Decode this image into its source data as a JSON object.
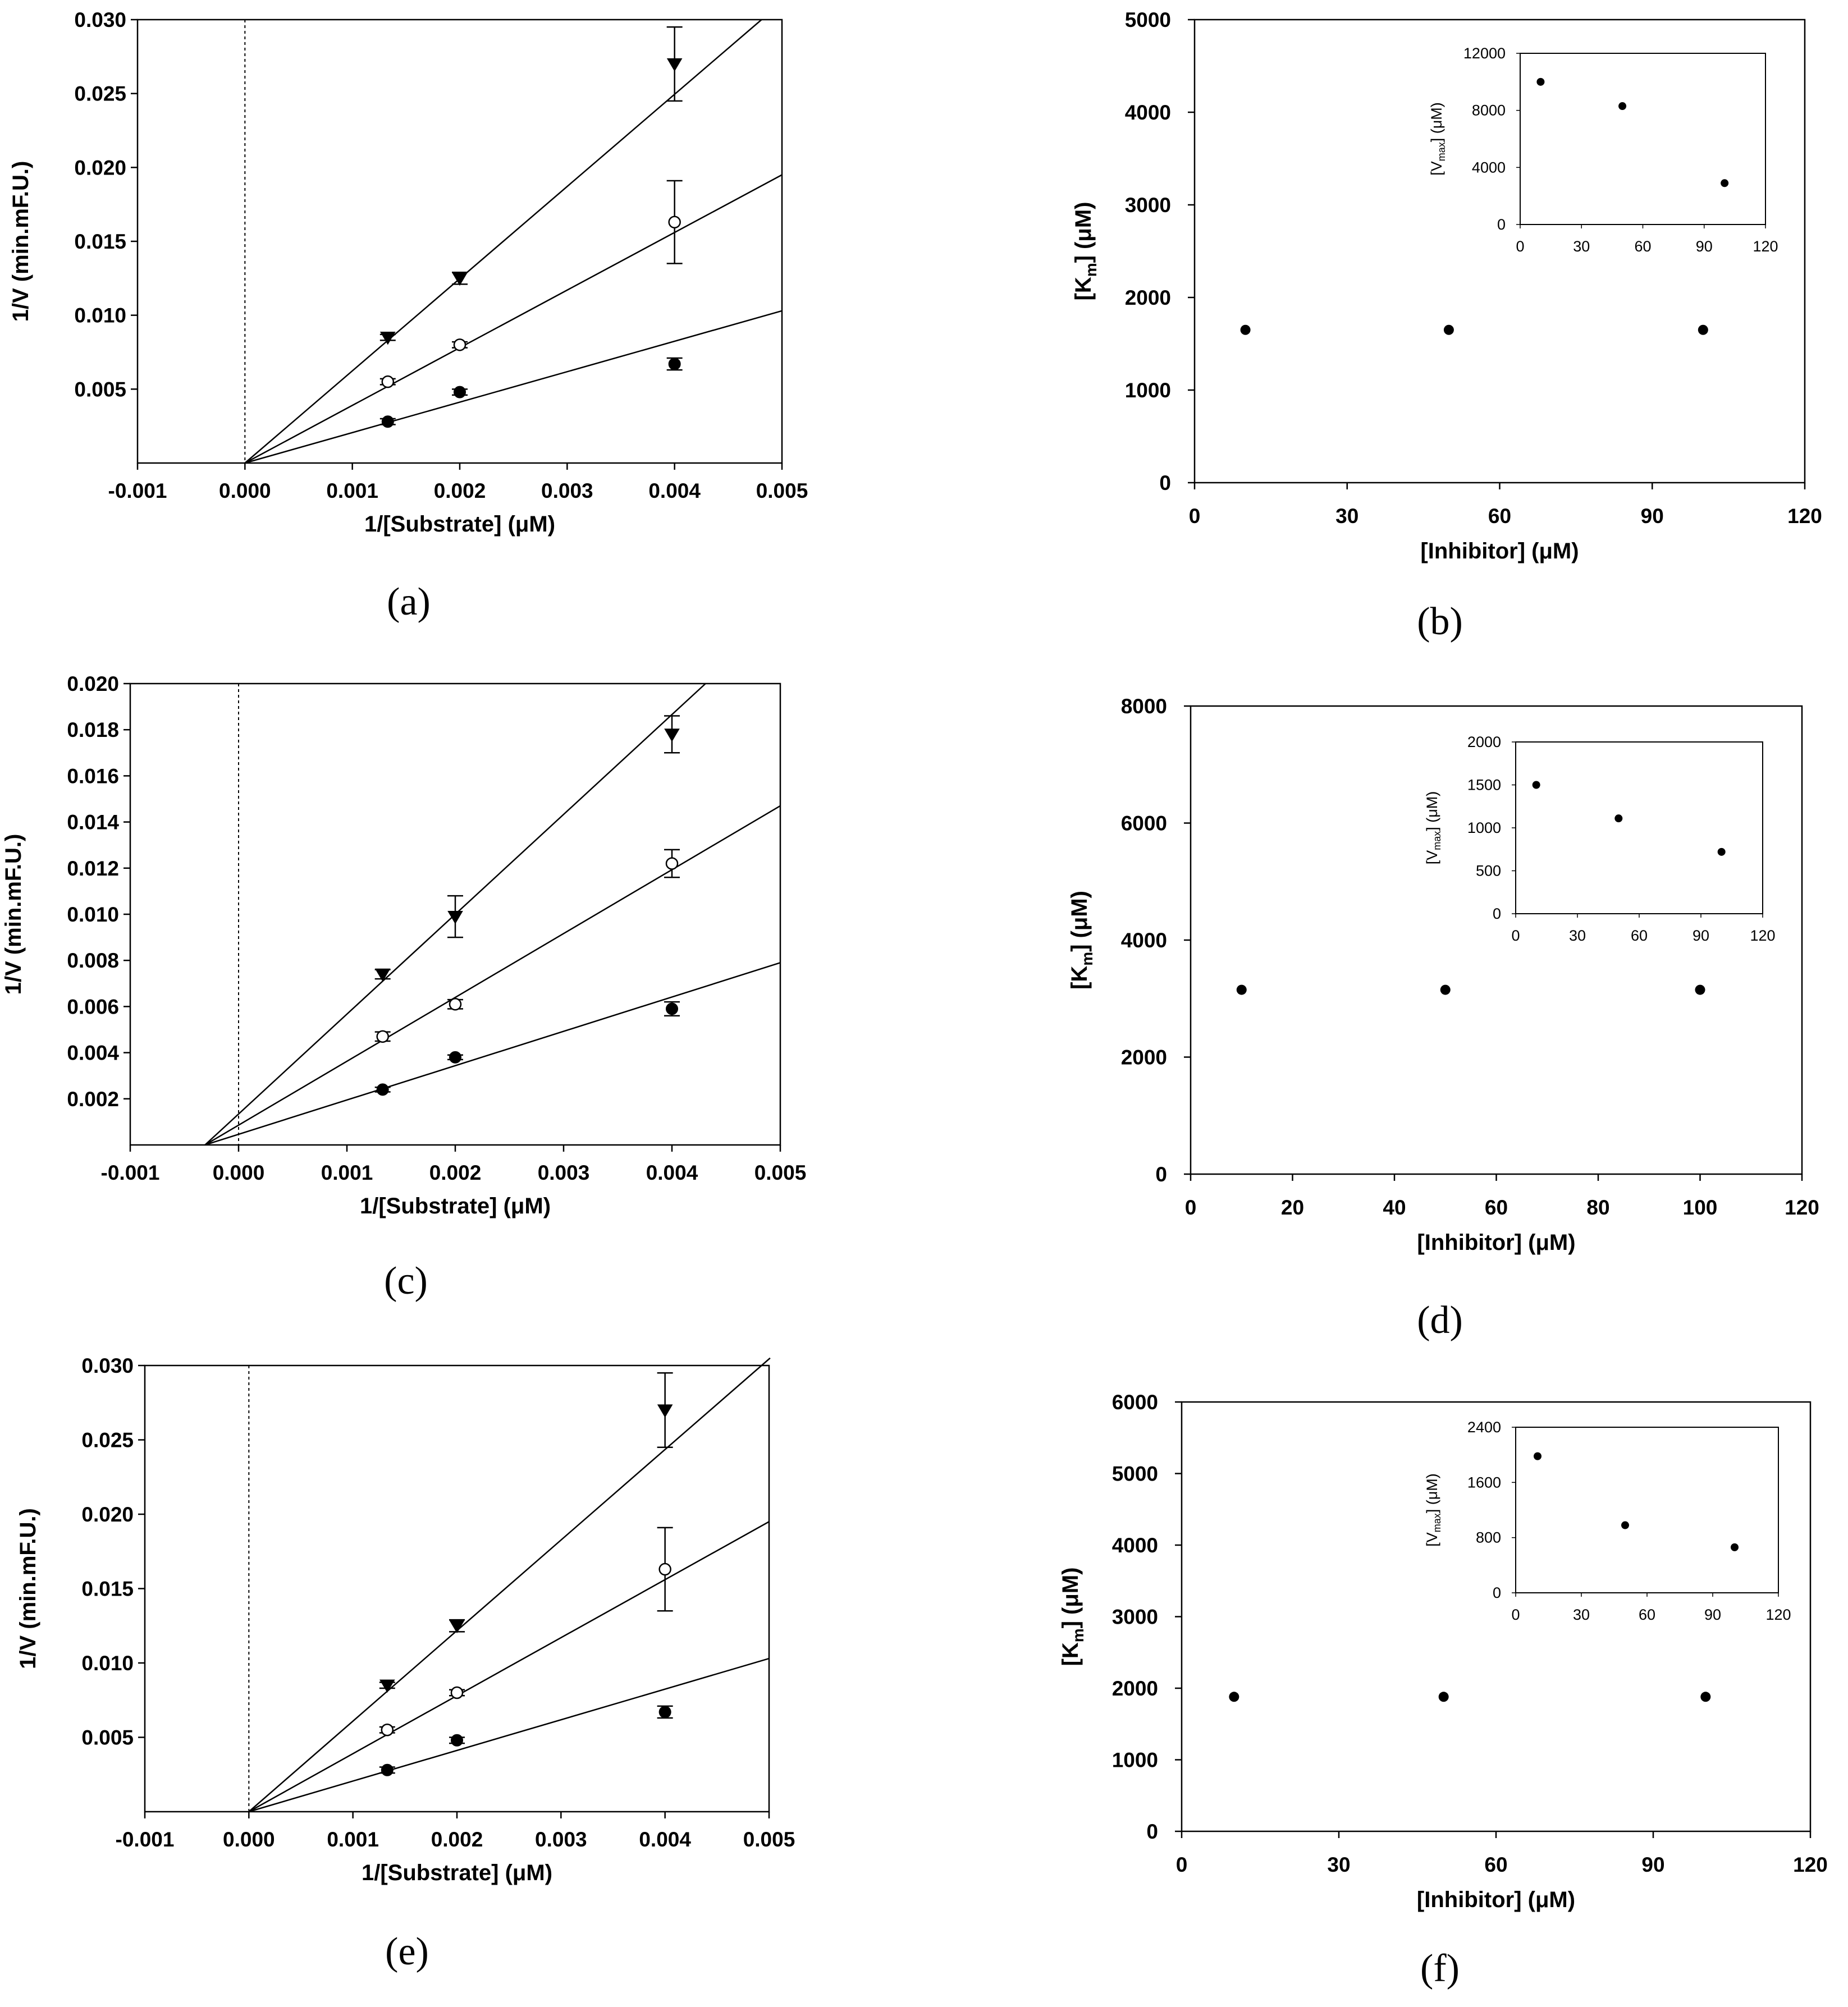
{
  "chart_data": [
    {
      "id": "a",
      "panel_label": "(a)",
      "type": "scatter",
      "subtype": "lineweaver-burk",
      "xlabel": "1/[Substrate] (μM)",
      "ylabel": "1/V (min.mF.U.)",
      "xlim": [
        -0.001,
        0.005
      ],
      "ylim": [
        0,
        0.03
      ],
      "xticks": [
        "-0.001",
        "0.000",
        "0.001",
        "0.002",
        "0.003",
        "0.004",
        "0.005"
      ],
      "yticks": [
        "0.005",
        "0.010",
        "0.015",
        "0.020",
        "0.025",
        "0.030"
      ],
      "dashed_vline_x": 0.0,
      "series": [
        {
          "name": "filled circle",
          "marker": "circle-filled",
          "x": [
            0.00133,
            0.002,
            0.004
          ],
          "y": [
            0.0028,
            0.0048,
            0.0067
          ],
          "err": [
            0.0002,
            0.0002,
            0.0004
          ],
          "line": {
            "x0": 0,
            "y0": 0,
            "x1": 0.005,
            "y1": 0.0103
          }
        },
        {
          "name": "open circle",
          "marker": "circle-open",
          "x": [
            0.00133,
            0.002,
            0.004
          ],
          "y": [
            0.0055,
            0.008,
            0.0163
          ],
          "err": [
            0.0002,
            0.0002,
            0.0028
          ],
          "line": {
            "x0": 0,
            "y0": 0,
            "x1": 0.005,
            "y1": 0.0195
          }
        },
        {
          "name": "filled triangle",
          "marker": "triangle-down",
          "x": [
            0.00133,
            0.002,
            0.004
          ],
          "y": [
            0.0085,
            0.0125,
            0.027
          ],
          "err": [
            0.0002,
            0.0004,
            0.0025
          ],
          "line": {
            "x0": 0,
            "y0": 0,
            "x1": 0.00481,
            "y1": 0.03
          }
        }
      ]
    },
    {
      "id": "b",
      "panel_label": "(b)",
      "type": "scatter",
      "xlabel": "[Inhibitor] (μM)",
      "ylabel": "[K_m] (μM)",
      "ylabel_main": "[K",
      "ylabel_sub": "m",
      "ylabel_end": "] (μM)",
      "xlim": [
        0,
        120
      ],
      "ylim": [
        0,
        5000
      ],
      "xticks": [
        "0",
        "30",
        "60",
        "90",
        "120"
      ],
      "yticks": [
        "0",
        "1000",
        "2000",
        "3000",
        "4000",
        "5000"
      ],
      "x": [
        10,
        50,
        100
      ],
      "y": [
        1650,
        1650,
        1650
      ],
      "inset": {
        "ylabel": "[V_max] (μM)",
        "ylabel_main": "[V",
        "ylabel_sub": "max",
        "ylabel_end": "] (μM)",
        "xlim": [
          0,
          120
        ],
        "ylim": [
          0,
          12000
        ],
        "xticks": [
          "0",
          "30",
          "60",
          "90",
          "120"
        ],
        "yticks": [
          "0",
          "4000",
          "8000",
          "12000"
        ],
        "x": [
          10,
          50,
          100
        ],
        "y": [
          10000,
          8300,
          2900
        ]
      }
    },
    {
      "id": "c",
      "panel_label": "(c)",
      "type": "scatter",
      "subtype": "lineweaver-burk",
      "xlabel": "1/[Substrate] (μM)",
      "ylabel": "1/V (min.mF.U.)",
      "xlim": [
        -0.001,
        0.005
      ],
      "ylim": [
        0,
        0.02
      ],
      "xticks": [
        "-0.001",
        "0.000",
        "0.001",
        "0.002",
        "0.003",
        "0.004",
        "0.005"
      ],
      "yticks": [
        "0.002",
        "0.004",
        "0.006",
        "0.008",
        "0.010",
        "0.012",
        "0.014",
        "0.016",
        "0.018",
        "0.020"
      ],
      "dashed_vline_x": 0.0,
      "series": [
        {
          "name": "filled circle",
          "marker": "circle-filled",
          "x": [
            0.00133,
            0.002,
            0.004
          ],
          "y": [
            0.0024,
            0.0038,
            0.0059
          ],
          "err": [
            0.0001,
            0.0001,
            0.0003
          ],
          "line": {
            "x0": -0.00031,
            "y0": 0,
            "x1": 0.005,
            "y1": 0.0079
          }
        },
        {
          "name": "open circle",
          "marker": "circle-open",
          "x": [
            0.00133,
            0.002,
            0.004
          ],
          "y": [
            0.0047,
            0.0061,
            0.0122
          ],
          "err": [
            0.0002,
            0.0002,
            0.0006
          ],
          "line": {
            "x0": -0.00031,
            "y0": 0,
            "x1": 0.005,
            "y1": 0.0147
          }
        },
        {
          "name": "filled triangle",
          "marker": "triangle-down",
          "x": [
            0.00133,
            0.002,
            0.004
          ],
          "y": [
            0.0074,
            0.0099,
            0.0178
          ],
          "err": [
            0.0002,
            0.0009,
            0.0008
          ],
          "line": {
            "x0": -0.00031,
            "y0": 0,
            "x1": 0.00431,
            "y1": 0.02
          }
        }
      ]
    },
    {
      "id": "d",
      "panel_label": "(d)",
      "type": "scatter",
      "xlabel": "[Inhibitor] (μM)",
      "ylabel": "[K_m] (μM)",
      "ylabel_main": "[K",
      "ylabel_sub": "m",
      "ylabel_end": "] (μM)",
      "xlim": [
        0,
        120
      ],
      "ylim": [
        0,
        8000
      ],
      "xticks": [
        "0",
        "20",
        "40",
        "60",
        "80",
        "100",
        "120"
      ],
      "yticks": [
        "0",
        "2000",
        "4000",
        "6000",
        "8000"
      ],
      "x": [
        10,
        50,
        100
      ],
      "y": [
        3150,
        3150,
        3150
      ],
      "inset": {
        "ylabel": "[V_max] (μM)",
        "ylabel_main": "[V",
        "ylabel_sub": "max",
        "ylabel_end": "] (μM)",
        "xlim": [
          0,
          120
        ],
        "ylim": [
          0,
          2000
        ],
        "xticks": [
          "0",
          "30",
          "60",
          "90",
          "120"
        ],
        "yticks": [
          "0",
          "500",
          "1000",
          "1500",
          "2000"
        ],
        "x": [
          10,
          50,
          100
        ],
        "y": [
          1500,
          1110,
          720
        ]
      }
    },
    {
      "id": "e",
      "panel_label": "(e)",
      "type": "scatter",
      "subtype": "lineweaver-burk",
      "xlabel": "1/[Substrate] (μM)",
      "ylabel": "1/V (min.mF.U.)",
      "xlim": [
        -0.001,
        0.005
      ],
      "ylim": [
        0,
        0.03
      ],
      "xticks": [
        "-0.001",
        "0.000",
        "0.001",
        "0.002",
        "0.003",
        "0.004",
        "0.005"
      ],
      "yticks": [
        "0.005",
        "0.010",
        "0.015",
        "0.020",
        "0.025",
        "0.030"
      ],
      "dashed_vline_x": 0.0,
      "series": [
        {
          "name": "filled circle",
          "marker": "circle-filled",
          "x": [
            0.00133,
            0.002,
            0.004
          ],
          "y": [
            0.0028,
            0.0048,
            0.0067
          ],
          "err": [
            0.0002,
            0.0002,
            0.0004
          ],
          "line": {
            "x0": 0,
            "y0": 0,
            "x1": 0.005,
            "y1": 0.0103
          }
        },
        {
          "name": "open circle",
          "marker": "circle-open",
          "x": [
            0.00133,
            0.002,
            0.004
          ],
          "y": [
            0.0055,
            0.008,
            0.0163
          ],
          "err": [
            0.0002,
            0.0002,
            0.0028
          ],
          "line": {
            "x0": 0,
            "y0": 0,
            "x1": 0.005,
            "y1": 0.0195
          }
        },
        {
          "name": "filled triangle",
          "marker": "triangle-down",
          "x": [
            0.00133,
            0.002,
            0.004
          ],
          "y": [
            0.0085,
            0.0125,
            0.027
          ],
          "err": [
            0.0002,
            0.0004,
            0.0025
          ],
          "line": {
            "x0": 0,
            "y0": 0,
            "x1": 0.00501,
            "y1": 0.0305
          }
        }
      ]
    },
    {
      "id": "f",
      "panel_label": "(f)",
      "type": "scatter",
      "xlabel": "[Inhibitor] (μM)",
      "ylabel": "[K_m] (μM)",
      "ylabel_main": "[K",
      "ylabel_sub": "m",
      "ylabel_end": "] (μM)",
      "xlim": [
        0,
        120
      ],
      "ylim": [
        0,
        6000
      ],
      "xticks": [
        "0",
        "30",
        "60",
        "90",
        "120"
      ],
      "yticks": [
        "0",
        "1000",
        "2000",
        "3000",
        "4000",
        "5000",
        "6000"
      ],
      "x": [
        10,
        50,
        100
      ],
      "y": [
        1880,
        1880,
        1880
      ],
      "inset": {
        "ylabel": "[V_max] (μM)",
        "ylabel_main": "[V",
        "ylabel_sub": "max",
        "ylabel_end": "] (μM)",
        "xlim": [
          0,
          120
        ],
        "ylim": [
          0,
          2400
        ],
        "xticks": [
          "0",
          "30",
          "60",
          "90",
          "120"
        ],
        "yticks": [
          "0",
          "800",
          "1600",
          "2400"
        ],
        "x": [
          10,
          50,
          100
        ],
        "y": [
          1980,
          980,
          660
        ]
      }
    }
  ]
}
